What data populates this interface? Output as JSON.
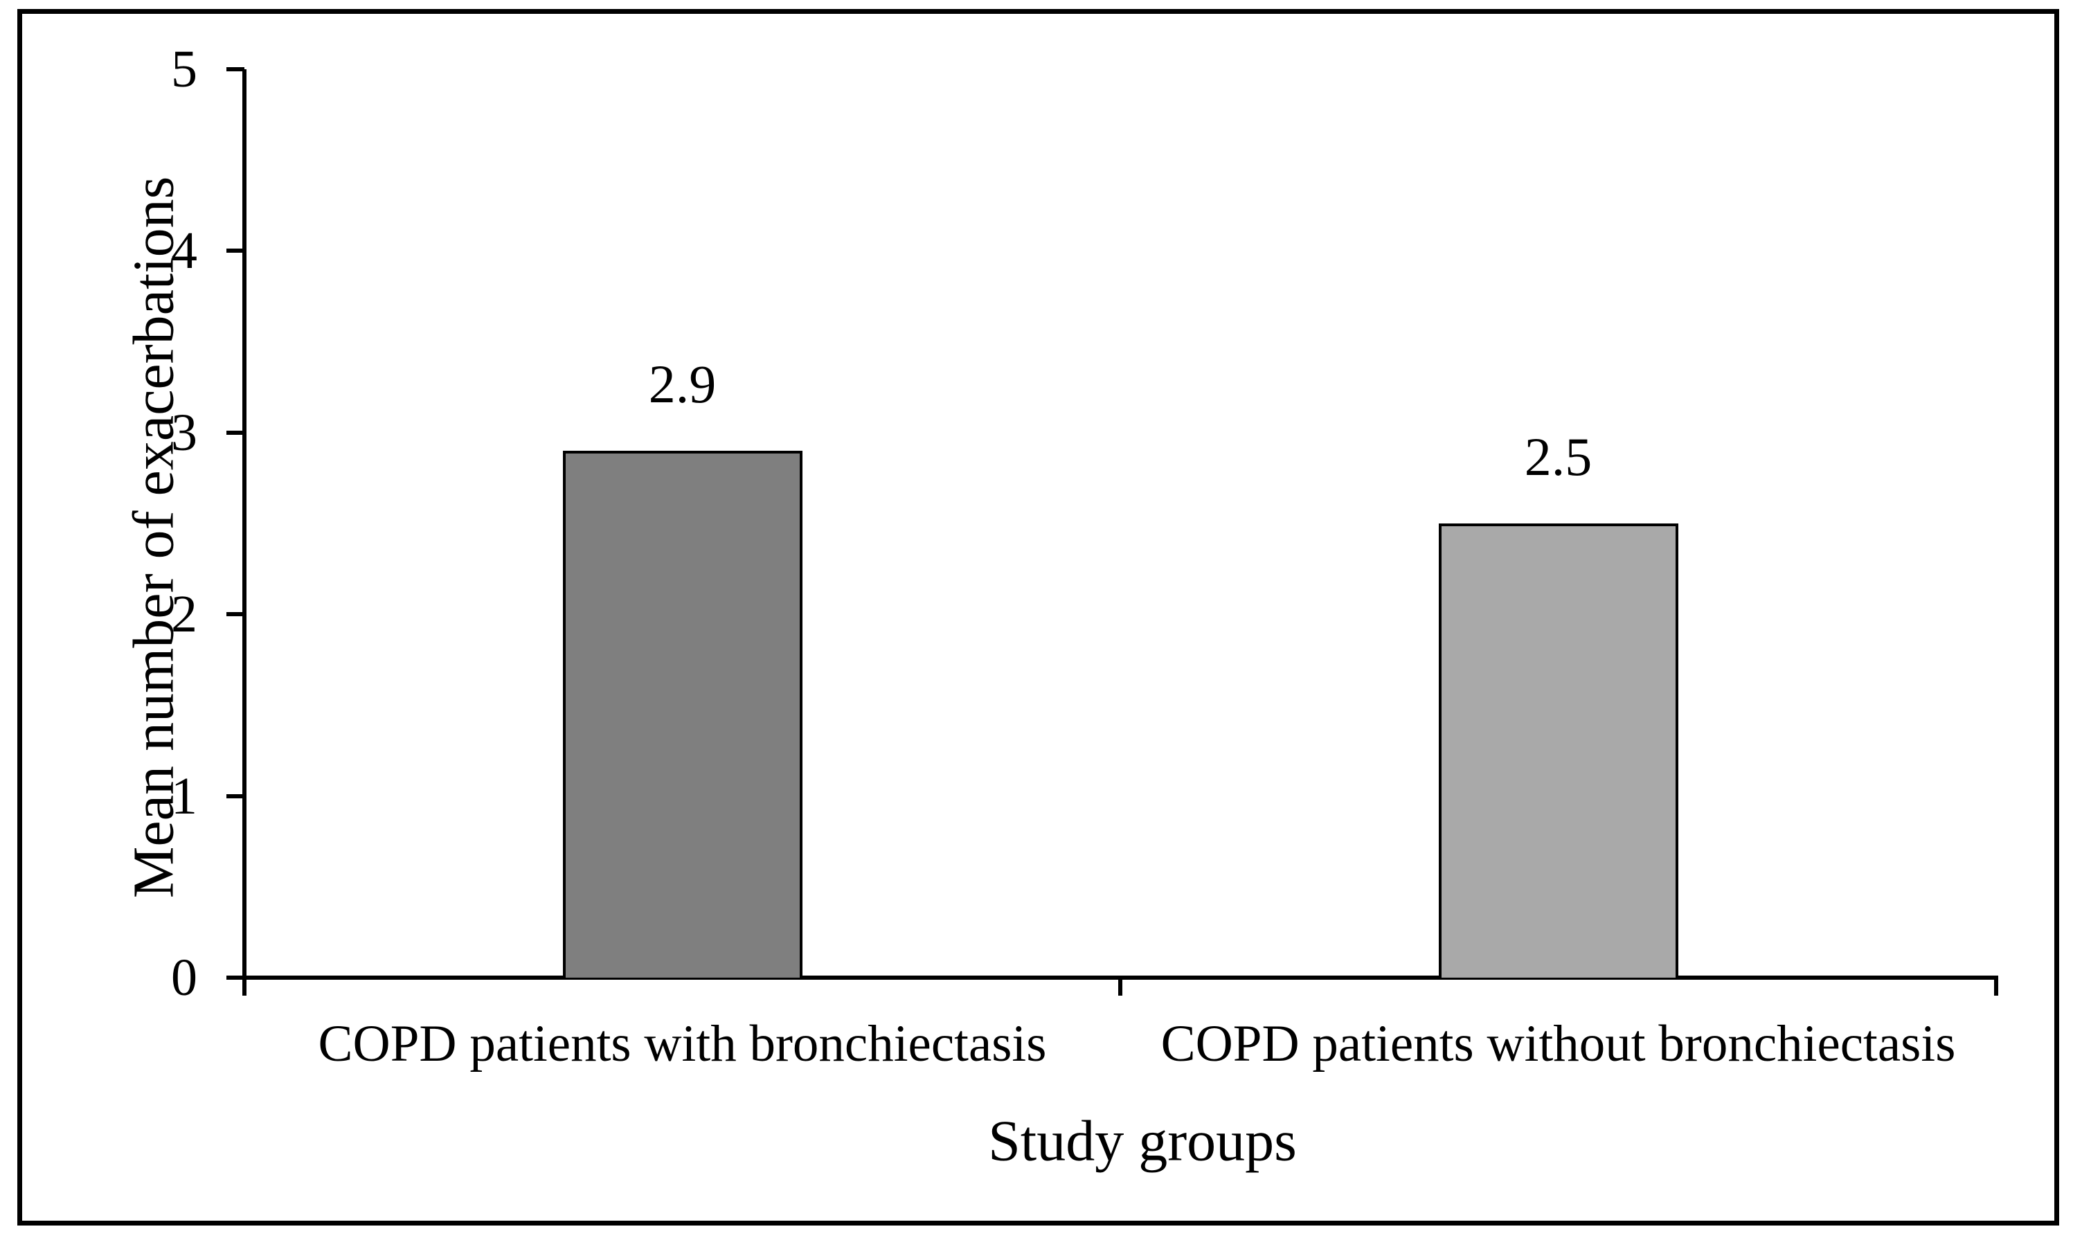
{
  "chart_data": {
    "type": "bar",
    "title": "",
    "xlabel": "Study groups",
    "ylabel": "Mean number of exacerbations",
    "categories": [
      "COPD patients with bronchiectasis",
      "COPD patients without bronchiectasis"
    ],
    "values": [
      2.9,
      2.5
    ],
    "value_labels": [
      "2.9",
      "2.5"
    ],
    "bar_colors": [
      "#7F7F7F",
      "#A9A9A9"
    ],
    "bar_border_color": "#000000",
    "ylim": [
      0,
      5
    ],
    "yticks": [
      0,
      1,
      2,
      3,
      4,
      5
    ],
    "grid": false,
    "legend": "none",
    "axis_color": "#000000",
    "background_color": "#FFFFFF",
    "frame_border_color": "#000000"
  }
}
